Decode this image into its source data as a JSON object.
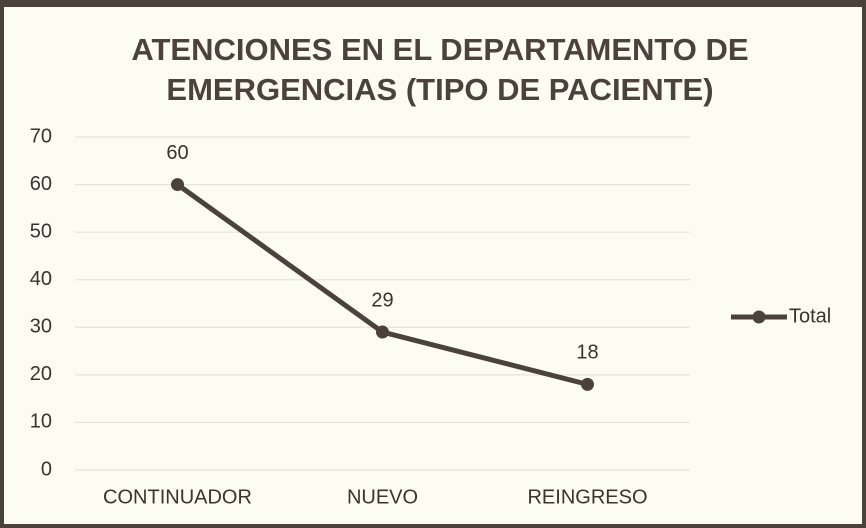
{
  "chart_data": {
    "type": "line",
    "title": "ATENCIONES EN EL DEPARTAMENTO DE EMERGENCIAS (TIPO DE PACIENTE)",
    "categories": [
      "CONTINUADOR",
      "NUEVO",
      "REINGRESO"
    ],
    "series": [
      {
        "name": "Total",
        "color": "#4b423b",
        "values": [
          60,
          29,
          18
        ]
      }
    ],
    "ylim": [
      0,
      70
    ],
    "yticks": [
      0,
      10,
      20,
      30,
      40,
      50,
      60,
      70
    ],
    "grid": true,
    "legend": "right",
    "data_labels": true
  }
}
